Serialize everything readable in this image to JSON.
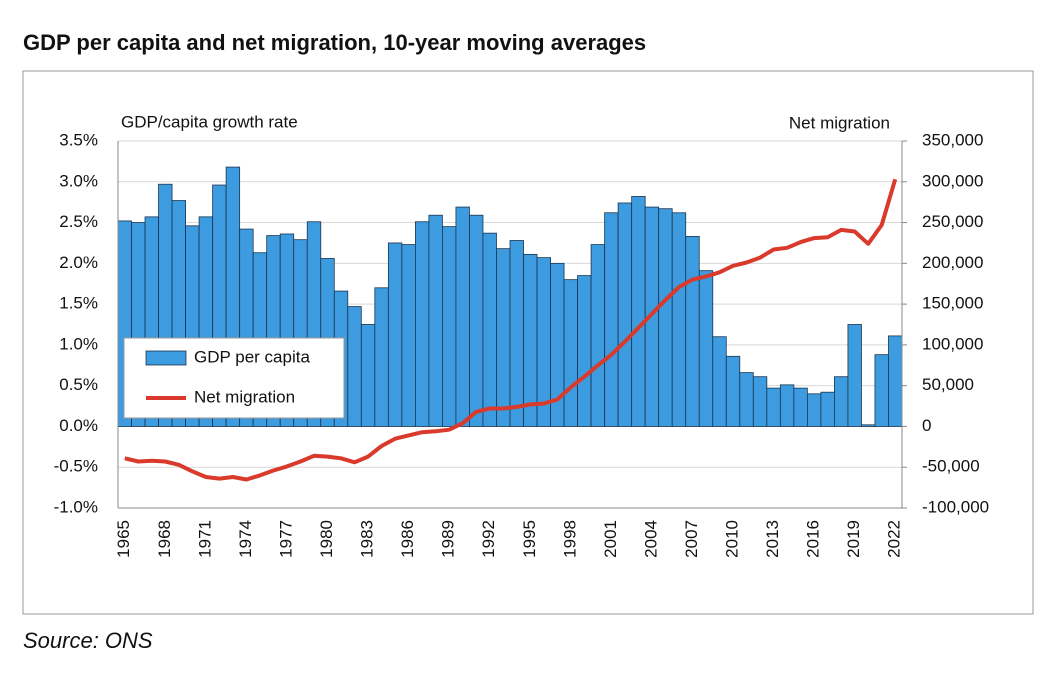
{
  "chart_data": {
    "type": "bar-line",
    "title": "GDP per capita and net migration, 10-year moving averages",
    "source": "Source: ONS",
    "y_label": "GDP/capita growth rate",
    "y2_label": "Net migration",
    "categories": [
      "1965",
      null,
      null,
      "1968",
      null,
      null,
      "1971",
      null,
      null,
      "1974",
      null,
      null,
      "1977",
      null,
      null,
      "1980",
      null,
      null,
      "1983",
      null,
      null,
      "1986",
      null,
      null,
      "1989",
      null,
      null,
      "1992",
      null,
      null,
      "1995",
      null,
      null,
      "1998",
      null,
      null,
      "2001",
      null,
      null,
      "2004",
      null,
      null,
      "2007",
      null,
      null,
      "2010",
      null,
      null,
      "2013",
      null,
      null,
      "2016",
      null,
      null,
      "2019",
      null,
      null,
      "2022"
    ],
    "series": [
      {
        "name": "GDP per capita",
        "color": "#3d9be0",
        "kind": "bar",
        "values": [
          2.52,
          2.5,
          2.57,
          2.97,
          2.77,
          2.46,
          2.57,
          2.96,
          3.18,
          2.42,
          2.13,
          2.34,
          2.36,
          2.29,
          2.51,
          2.06,
          1.66,
          1.47,
          1.25,
          1.7,
          2.25,
          2.23,
          2.51,
          2.59,
          2.45,
          2.69,
          2.59,
          2.37,
          2.18,
          2.28,
          2.11,
          2.07,
          2.0,
          1.8,
          1.85,
          2.23,
          2.62,
          2.74,
          2.82,
          2.69,
          2.67,
          2.62,
          2.33,
          1.91,
          1.1,
          0.86,
          0.66,
          0.61,
          0.47,
          0.51,
          0.47,
          0.4,
          0.42,
          0.61,
          1.25,
          0.02,
          0.88,
          1.11
        ]
      },
      {
        "name": "Net migration",
        "color": "#d93a2b",
        "kind": "line",
        "axis": "y2",
        "values": [
          -39000,
          -43000,
          -42000,
          -43000,
          -47000,
          -55000,
          -62000,
          -64000,
          -62000,
          -65000,
          -60000,
          -54000,
          -49000,
          -43000,
          -36000,
          -37000,
          -39000,
          -44000,
          -37000,
          -24000,
          -15000,
          -11000,
          -7000,
          -6000,
          -4000,
          4000,
          18000,
          22000,
          22000,
          24000,
          27000,
          28000,
          33000,
          48000,
          61000,
          75000,
          88000,
          104000,
          121000,
          138000,
          155000,
          171000,
          180000,
          184000,
          189000,
          197000,
          201000,
          207000,
          217000,
          219000,
          226000,
          231000,
          232000,
          241000,
          239000,
          224000,
          247000,
          303000
        ]
      }
    ],
    "ylim": [
      -1.0,
      3.5
    ],
    "yticks": [
      {
        "value": -1.0,
        "label": "-1.0%"
      },
      {
        "value": -0.5,
        "label": "-0.5%"
      },
      {
        "value": 0.0,
        "label": "0.0%"
      },
      {
        "value": 0.5,
        "label": "0.5%"
      },
      {
        "value": 1.0,
        "label": "1.0%"
      },
      {
        "value": 1.5,
        "label": "1.5%"
      },
      {
        "value": 2.0,
        "label": "2.0%"
      },
      {
        "value": 2.5,
        "label": "2.5%"
      },
      {
        "value": 3.0,
        "label": "3.0%"
      },
      {
        "value": 3.5,
        "label": "3.5%"
      }
    ],
    "y2lim": [
      -100000,
      350000
    ],
    "y2ticks": [
      {
        "value": -100000,
        "label": "-100,000"
      },
      {
        "value": -50000,
        "label": "-50,000"
      },
      0,
      {
        "value": 50000,
        "label": "50,000"
      },
      {
        "value": 100000,
        "label": "100,000"
      },
      {
        "value": 150000,
        "label": "150,000"
      },
      {
        "value": 200000,
        "label": "200,000"
      },
      {
        "value": 250000,
        "label": "250,000"
      },
      {
        "value": 300000,
        "label": "300,000"
      },
      {
        "value": 350000,
        "label": "350,000"
      }
    ],
    "grid": true,
    "legend": "left"
  }
}
